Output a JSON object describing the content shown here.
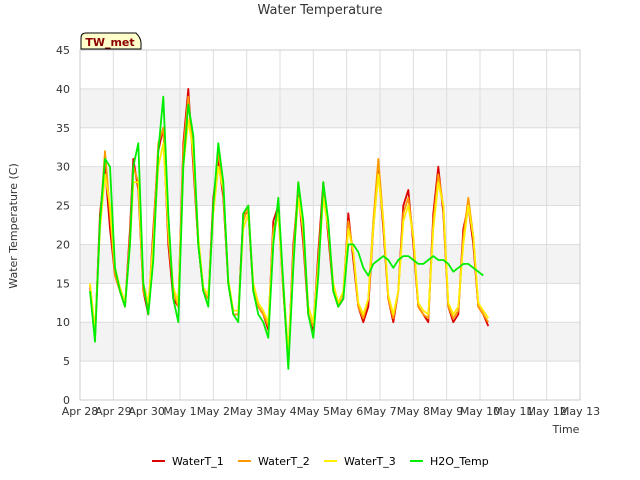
{
  "chart_data": {
    "type": "line",
    "title": "Water Temperature",
    "xlabel": "Time",
    "ylabel": "Water Temperature (C)",
    "site_tag": "TW_met",
    "xlim": [
      0,
      15
    ],
    "ylim": [
      0,
      45
    ],
    "x_ticks": [
      {
        "x": 0,
        "label": "Apr 28"
      },
      {
        "x": 1,
        "label": "Apr 29"
      },
      {
        "x": 2,
        "label": "Apr 30"
      },
      {
        "x": 3,
        "label": "May 1"
      },
      {
        "x": 4,
        "label": "May 2"
      },
      {
        "x": 5,
        "label": "May 3"
      },
      {
        "x": 6,
        "label": "May 4"
      },
      {
        "x": 7,
        "label": "May 5"
      },
      {
        "x": 8,
        "label": "May 6"
      },
      {
        "x": 9,
        "label": "May 7"
      },
      {
        "x": 10,
        "label": "May 8"
      },
      {
        "x": 11,
        "label": "May 9"
      },
      {
        "x": 12,
        "label": "May 10"
      },
      {
        "x": 13,
        "label": "May 11"
      },
      {
        "x": 14,
        "label": "May 12"
      },
      {
        "x": 15,
        "label": "May 13"
      }
    ],
    "y_ticks": [
      0,
      5,
      10,
      15,
      20,
      25,
      30,
      35,
      40,
      45
    ],
    "grid": true,
    "legend_position": "bottom",
    "series": [
      {
        "name": "WaterT_1",
        "color": "#dd0000",
        "x": [
          0.3,
          0.45,
          0.6,
          0.75,
          0.9,
          1.05,
          1.2,
          1.35,
          1.5,
          1.6,
          1.75,
          1.9,
          2.05,
          2.2,
          2.35,
          2.5,
          2.65,
          2.8,
          2.95,
          3.1,
          3.25,
          3.4,
          3.55,
          3.7,
          3.85,
          4.0,
          4.15,
          4.3,
          4.45,
          4.6,
          4.75,
          4.9,
          5.05,
          5.2,
          5.35,
          5.5,
          5.65,
          5.8,
          5.95,
          6.1,
          6.25,
          6.4,
          6.55,
          6.7,
          6.85,
          7.0,
          7.15,
          7.3,
          7.45,
          7.6,
          7.75,
          7.9,
          8.05,
          8.2,
          8.35,
          8.5,
          8.65,
          8.8,
          8.95,
          9.1,
          9.25,
          9.4,
          9.55,
          9.7,
          9.85,
          10.0,
          10.15,
          10.3,
          10.45,
          10.6,
          10.75,
          10.9,
          11.05,
          11.2,
          11.35,
          11.5,
          11.65,
          11.8,
          11.95,
          12.1,
          12.25,
          12.4,
          12.55,
          12.7,
          12.85,
          13.0,
          13.15,
          13.3,
          13.45,
          13.6,
          13.75,
          13.9,
          14.05,
          14.2,
          14.35
        ],
        "y": [
          14.5,
          8,
          24,
          30,
          22,
          16,
          14,
          12,
          22,
          31,
          27,
          14,
          11,
          22,
          32,
          35,
          20,
          13,
          12,
          33,
          40,
          30,
          20,
          14,
          13,
          26,
          31,
          26,
          15,
          11,
          11,
          24,
          24,
          14,
          12,
          11,
          9,
          23,
          25,
          14,
          5,
          20,
          27,
          20,
          11,
          9,
          19,
          28,
          21,
          14,
          12,
          13,
          24,
          18,
          12,
          10,
          12,
          22,
          30,
          22,
          13,
          10,
          14,
          25,
          27,
          20,
          12,
          11,
          10,
          24,
          30,
          24,
          12,
          10,
          11,
          22,
          25,
          20,
          12,
          11,
          9.5,
          null,
          null,
          null,
          null,
          null,
          null,
          null,
          null,
          null,
          null,
          null,
          null,
          null,
          null
        ]
      },
      {
        "name": "WaterT_2",
        "color": "#ff9900",
        "x": [
          0.3,
          0.45,
          0.6,
          0.75,
          0.9,
          1.05,
          1.2,
          1.35,
          1.5,
          1.6,
          1.75,
          1.9,
          2.05,
          2.2,
          2.35,
          2.5,
          2.65,
          2.8,
          2.95,
          3.1,
          3.25,
          3.4,
          3.55,
          3.7,
          3.85,
          4.0,
          4.15,
          4.3,
          4.45,
          4.6,
          4.75,
          4.9,
          5.05,
          5.2,
          5.35,
          5.5,
          5.65,
          5.8,
          5.95,
          6.1,
          6.25,
          6.4,
          6.55,
          6.7,
          6.85,
          7.0,
          7.15,
          7.3,
          7.45,
          7.6,
          7.75,
          7.9,
          8.05,
          8.2,
          8.35,
          8.5,
          8.65,
          8.8,
          8.95,
          9.1,
          9.25,
          9.4,
          9.55,
          9.7,
          9.85,
          10.0,
          10.15,
          10.3,
          10.45,
          10.6,
          10.75,
          10.9,
          11.05,
          11.2,
          11.35,
          11.5,
          11.65,
          11.8,
          11.95,
          12.1,
          12.25,
          12.4,
          12.55,
          12.7,
          12.85,
          13.0,
          13.15,
          13.3,
          13.45,
          13.6,
          13.75,
          13.9,
          14.05,
          14.2,
          14.35
        ],
        "y": [
          14.8,
          8.5,
          23,
          32,
          24,
          16,
          14,
          12,
          21,
          30,
          28,
          14,
          12,
          21,
          33,
          35,
          21,
          14,
          12,
          32,
          39,
          31,
          20,
          14,
          13,
          25,
          32,
          27,
          15,
          11,
          11,
          23,
          25,
          14,
          12,
          11,
          9.5,
          22,
          24,
          14,
          5.5,
          19,
          28,
          21,
          11,
          9.5,
          18,
          27,
          22,
          14,
          12,
          14,
          23,
          19,
          12,
          10.5,
          13,
          23,
          31,
          23,
          13,
          10.5,
          14,
          24,
          26,
          21,
          12,
          11,
          10.5,
          23,
          29,
          25,
          12,
          10.5,
          11.5,
          21,
          26,
          21,
          12,
          11,
          10,
          null,
          null,
          null,
          null,
          null,
          null,
          null,
          null,
          null,
          null,
          null,
          null,
          null,
          null
        ]
      },
      {
        "name": "WaterT_3",
        "color": "#ffee00",
        "x": [
          0.3,
          0.45,
          0.6,
          0.75,
          0.9,
          1.05,
          1.2,
          1.35,
          1.5,
          1.6,
          1.75,
          1.9,
          2.05,
          2.2,
          2.35,
          2.5,
          2.65,
          2.8,
          2.95,
          3.1,
          3.25,
          3.4,
          3.55,
          3.7,
          3.85,
          4.0,
          4.15,
          4.3,
          4.45,
          4.6,
          4.75,
          4.9,
          5.05,
          5.2,
          5.35,
          5.5,
          5.65,
          5.8,
          5.95,
          6.1,
          6.25,
          6.4,
          6.55,
          6.7,
          6.85,
          7.0,
          7.15,
          7.3,
          7.45,
          7.6,
          7.75,
          7.9,
          8.05,
          8.2,
          8.35,
          8.5,
          8.65,
          8.8,
          8.95,
          9.1,
          9.25,
          9.4,
          9.55,
          9.7,
          9.85,
          10.0,
          10.15,
          10.3,
          10.45,
          10.6,
          10.75,
          10.9,
          11.05,
          11.2,
          11.35,
          11.5,
          11.65,
          11.8,
          11.95,
          12.1,
          12.25,
          12.4,
          12.55,
          12.7,
          12.85,
          13.0,
          13.15,
          13.3,
          13.45,
          13.6,
          13.75,
          13.9,
          14.05,
          14.2,
          14.35
        ],
        "y": [
          15,
          9,
          22,
          29,
          25,
          17,
          14.5,
          12.5,
          20,
          28,
          28,
          15,
          12.5,
          20,
          30,
          33,
          22,
          14.5,
          12.5,
          30,
          36,
          32,
          21,
          14.5,
          13.5,
          24,
          30,
          27,
          15.5,
          11.5,
          11.5,
          22,
          24,
          15,
          12.5,
          11.5,
          10,
          21,
          24,
          15,
          6,
          18,
          26,
          22,
          12,
          10,
          17,
          26,
          22,
          15,
          12.5,
          14,
          22,
          19,
          12.5,
          11,
          13,
          22,
          29,
          23,
          13.5,
          11,
          14,
          23,
          25,
          21,
          12.5,
          11.5,
          11,
          22,
          28,
          25,
          12.5,
          11,
          12,
          20,
          25,
          21,
          12.5,
          11.5,
          10.5,
          null,
          null,
          null,
          null,
          null,
          null,
          null,
          null,
          null,
          null,
          null,
          null,
          null,
          null
        ]
      },
      {
        "name": "H2O_Temp",
        "color": "#00ee00",
        "x": [
          0.3,
          0.45,
          0.6,
          0.75,
          0.9,
          1.05,
          1.2,
          1.35,
          1.5,
          1.6,
          1.75,
          1.9,
          2.05,
          2.2,
          2.35,
          2.5,
          2.65,
          2.8,
          2.95,
          3.1,
          3.25,
          3.4,
          3.55,
          3.7,
          3.85,
          4.0,
          4.15,
          4.3,
          4.45,
          4.6,
          4.75,
          4.9,
          5.05,
          5.2,
          5.35,
          5.5,
          5.65,
          5.8,
          5.95,
          6.1,
          6.25,
          6.4,
          6.55,
          6.7,
          6.85,
          7.0,
          7.15,
          7.3,
          7.45,
          7.6,
          7.75,
          7.9,
          8.05,
          8.2,
          8.35,
          8.5,
          8.65,
          8.8,
          8.95,
          9.1,
          9.25,
          9.4,
          9.55,
          9.7,
          9.85,
          10.0,
          10.15,
          10.3,
          10.45,
          10.6,
          10.75,
          10.9,
          11.05,
          11.2,
          11.35,
          11.5,
          11.65,
          11.8,
          11.95,
          12.1,
          12.25,
          12.4,
          12.55,
          12.7,
          12.85,
          13.0,
          13.15,
          13.3,
          13.45,
          13.6,
          13.75,
          13.9,
          14.05,
          14.2,
          14.35
        ],
        "y": [
          14,
          7.5,
          23,
          31,
          30,
          17,
          14,
          12,
          20,
          30,
          33,
          15,
          11,
          18,
          32,
          39,
          24,
          13,
          10,
          30,
          38,
          34,
          20,
          14,
          12,
          25,
          33,
          28,
          15,
          11,
          10,
          24,
          25,
          14,
          11,
          10,
          8,
          20,
          26,
          15,
          4,
          17,
          28,
          23,
          11,
          8,
          16,
          28,
          23,
          14,
          12,
          13,
          20,
          20,
          19,
          17,
          16,
          17.5,
          18,
          18.5,
          18,
          17,
          18,
          18.5,
          18.5,
          18,
          17.5,
          17.5,
          18,
          18.5,
          18,
          18,
          17.5,
          16.5,
          17,
          17.5,
          17.5,
          17,
          16.5,
          16,
          null,
          null,
          null,
          null,
          null,
          null,
          null,
          null,
          null,
          null,
          null,
          null,
          null,
          null,
          null
        ]
      }
    ]
  }
}
